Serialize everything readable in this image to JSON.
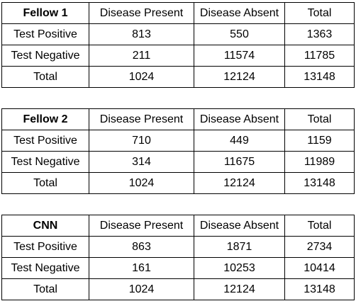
{
  "tables": [
    {
      "title": "Fellow 1",
      "columns": [
        "Disease Present",
        "Disease Absent",
        "Total"
      ],
      "rows": [
        {
          "label": "Test Positive",
          "values": [
            "813",
            "550",
            "1363"
          ]
        },
        {
          "label": "Test Negative",
          "values": [
            "211",
            "11574",
            "11785"
          ]
        },
        {
          "label": "Total",
          "values": [
            "1024",
            "12124",
            "13148"
          ]
        }
      ]
    },
    {
      "title": "Fellow 2",
      "columns": [
        "Disease Present",
        "Disease Absent",
        "Total"
      ],
      "rows": [
        {
          "label": "Test Positive",
          "values": [
            "710",
            "449",
            "1159"
          ]
        },
        {
          "label": "Test Negative",
          "values": [
            "314",
            "11675",
            "11989"
          ]
        },
        {
          "label": "Total",
          "values": [
            "1024",
            "12124",
            "13148"
          ]
        }
      ]
    },
    {
      "title": "CNN",
      "columns": [
        "Disease Present",
        "Disease Absent",
        "Total"
      ],
      "rows": [
        {
          "label": "Test Positive",
          "values": [
            "863",
            "1871",
            "2734"
          ]
        },
        {
          "label": "Test Negative",
          "values": [
            "161",
            "10253",
            "10414"
          ]
        },
        {
          "label": "Total",
          "values": [
            "1024",
            "12124",
            "13148"
          ]
        }
      ]
    }
  ]
}
